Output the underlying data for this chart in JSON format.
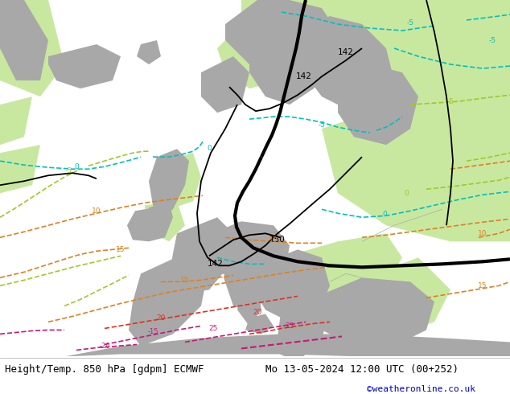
{
  "title_left": "Height/Temp. 850 hPa [gdpm] ECMWF",
  "title_right": "Mo 13-05-2024 12:00 UTC (00+252)",
  "title_right2": "©weatheronline.co.uk",
  "ocean_color": "#d8d8d8",
  "land_gray": "#a8a8a8",
  "land_border": "#888888",
  "warm_green": "#c8e8a0",
  "cyan_color": "#00c0c0",
  "ygreen_color": "#a0c828",
  "orange_color": "#e08020",
  "red_color": "#e03020",
  "pink_color": "#c81878",
  "black_color": "#000000",
  "label_fs": 9,
  "credit_fs": 8
}
